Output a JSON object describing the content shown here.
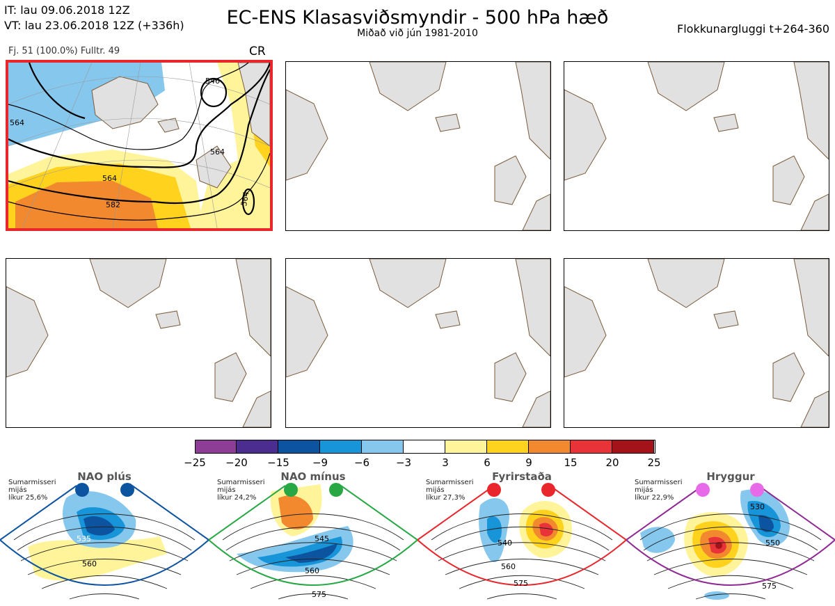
{
  "header": {
    "line1": "IT: lau 09.06.2018 12Z",
    "line2": "VT: lau 23.06.2018 12Z  (+336h)",
    "title": "EC-ENS Klasasviðsmyndir - 500 hPa hæð",
    "subtitle": "Miðað við jún 1981-2010",
    "window": "Flokkunargluggi t+264-360"
  },
  "panel1": {
    "meta": "Fj. 51 (100.0%)   Fulltr. 49",
    "regime_code": "CR",
    "contour_labels": [
      "546",
      "564",
      "564",
      "564",
      "582",
      "564"
    ]
  },
  "colorbar": {
    "colors": [
      "#8e3d97",
      "#4b2d90",
      "#0d54a0",
      "#1795d8",
      "#86c7ee",
      "#ffffff",
      "#fff49a",
      "#ffd21e",
      "#f3892f",
      "#e83438",
      "#a5131a"
    ],
    "ticks": [
      "−25",
      "−20",
      "−15",
      "−9",
      "−6",
      "−3",
      "3",
      "6",
      "9",
      "15",
      "20",
      "25"
    ]
  },
  "regimes": [
    {
      "name": "NAO plús",
      "season": "Sumarmisseri",
      "field": "mijás",
      "prob": "líkur 25,6%",
      "color": "#0d54a0",
      "labels": [
        "535",
        "560"
      ]
    },
    {
      "name": "NAO mínus",
      "season": "Sumarmisseri",
      "field": "mijás",
      "prob": "líkur 24,2%",
      "color": "#27a844",
      "labels": [
        "545",
        "560",
        "575"
      ]
    },
    {
      "name": "Fyrirstaða",
      "season": "Sumarmisseri",
      "field": "mijás",
      "prob": "líkur 27,3%",
      "color": "#e8262b",
      "labels": [
        "540",
        "560",
        "575"
      ]
    },
    {
      "name": "Hryggur",
      "season": "Sumarmisseri",
      "field": "mijás",
      "prob": "líkur 22,9%",
      "color": "#8f2a93",
      "labels": [
        "530",
        "550",
        "575"
      ]
    }
  ]
}
